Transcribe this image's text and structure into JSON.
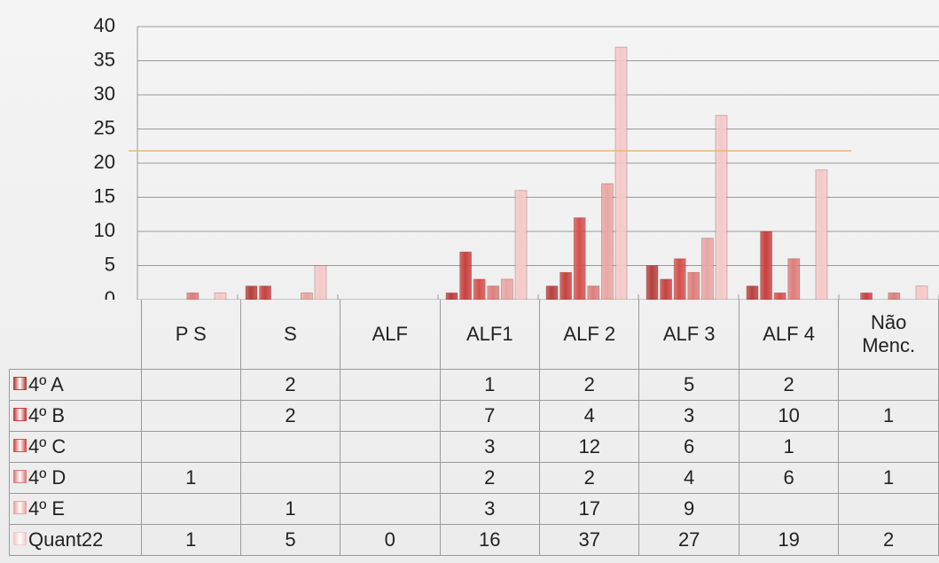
{
  "chart_data": {
    "type": "bar",
    "categories": [
      "P S",
      "S",
      "ALF",
      "ALF1",
      "ALF 2",
      "ALF 3",
      "ALF 4",
      "Não Menc."
    ],
    "series": [
      {
        "name": "4º A",
        "color": "#b8403d",
        "values": [
          null,
          2,
          null,
          1,
          2,
          5,
          2,
          null
        ]
      },
      {
        "name": "4º B",
        "color": "#c8413f",
        "values": [
          null,
          2,
          null,
          7,
          4,
          3,
          10,
          1
        ]
      },
      {
        "name": "4º C",
        "color": "#d4504c",
        "values": [
          null,
          null,
          null,
          3,
          12,
          6,
          1,
          null
        ]
      },
      {
        "name": "4º D",
        "color": "#de7e7b",
        "values": [
          1,
          null,
          null,
          2,
          2,
          4,
          6,
          1
        ]
      },
      {
        "name": "4º E",
        "color": "#e9a5a3",
        "values": [
          null,
          1,
          null,
          3,
          17,
          9,
          null,
          null
        ]
      },
      {
        "name": "Quant22",
        "color": "#f4c9c8",
        "values": [
          1,
          5,
          0,
          16,
          37,
          27,
          19,
          2
        ]
      }
    ],
    "ylim": [
      0,
      40
    ],
    "yticks": [
      0,
      5,
      10,
      15,
      20,
      25,
      30,
      35,
      40
    ],
    "grid": true,
    "reference_line": {
      "value": 21.8,
      "color": "#f0b27a"
    }
  }
}
